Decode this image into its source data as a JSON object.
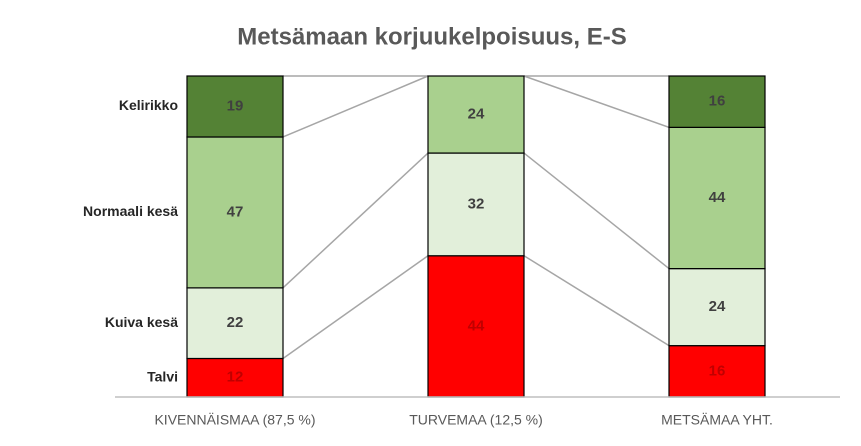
{
  "chart_data": {
    "type": "stacked_bar",
    "title": "Metsämaan korjuukelpoisuus, E-S",
    "categories": [
      "KIVENNÄISMAA (87,5 %)",
      "TURVEMAA (12,5 %)",
      "METSÄMAA YHT."
    ],
    "series": [
      {
        "name": "Talvi",
        "color": "#ff0000",
        "values": [
          12,
          44,
          16
        ]
      },
      {
        "name": "Kuiva kesä",
        "color": "#e2efda",
        "values": [
          22,
          32,
          24
        ]
      },
      {
        "name": "Normaali kesä",
        "color": "#a9d08e",
        "values": [
          47,
          24,
          44
        ]
      },
      {
        "name": "Kelirikko",
        "color": "#548235",
        "values": [
          19,
          0,
          16
        ]
      }
    ],
    "ylim": [
      0,
      100
    ]
  }
}
